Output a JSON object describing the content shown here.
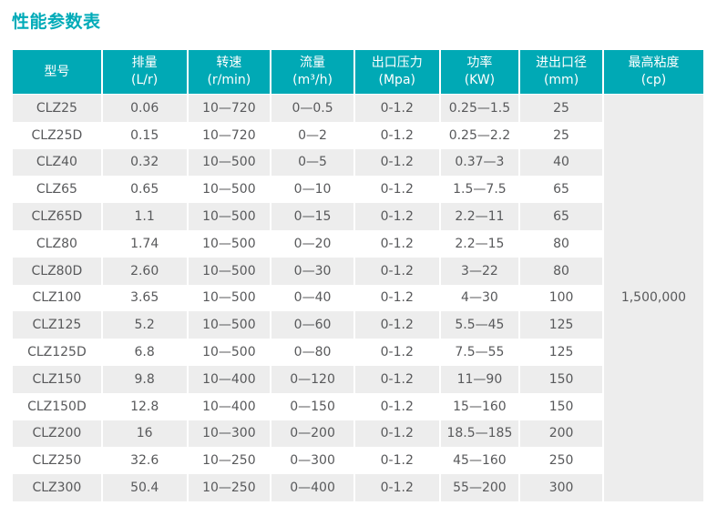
{
  "page": {
    "heading_color": "#00abb8",
    "header_bg_color": "#00a9b5",
    "stripe_color": "#ededed",
    "cell_text_color": "#58595b"
  },
  "chart_data": {
    "type": "table",
    "title": "性能参数表",
    "columns": [
      {
        "label": "型号",
        "unit": ""
      },
      {
        "label": "排量",
        "unit": "(L/r)"
      },
      {
        "label": "转速",
        "unit": "(r/min)"
      },
      {
        "label": "流量",
        "unit": "(m³/h)"
      },
      {
        "label": "出口压力",
        "unit": "(Mpa)"
      },
      {
        "label": "功率",
        "unit": "(KW)"
      },
      {
        "label": "进出口径",
        "unit": "(mm)"
      },
      {
        "label": "最高粘度",
        "unit": "(cp)"
      }
    ],
    "rows": [
      [
        "CLZ25",
        "0.06",
        "10—720",
        "0—0.5",
        "0-1.2",
        "0.25—1.5",
        "25"
      ],
      [
        "CLZ25D",
        "0.15",
        "10—720",
        "0—2",
        "0-1.2",
        "0.25—2.2",
        "25"
      ],
      [
        "CLZ40",
        "0.32",
        "10—500",
        "0—5",
        "0-1.2",
        "0.37—3",
        "40"
      ],
      [
        "CLZ65",
        "0.65",
        "10—500",
        "0—10",
        "0-1.2",
        "1.5—7.5",
        "65"
      ],
      [
        "CLZ65D",
        "1.1",
        "10—500",
        "0—15",
        "0-1.2",
        "2.2—11",
        "65"
      ],
      [
        "CLZ80",
        "1.74",
        "10—500",
        "0—20",
        "0-1.2",
        "2.2—15",
        "80"
      ],
      [
        "CLZ80D",
        "2.60",
        "10—500",
        "0—30",
        "0-1.2",
        "3—22",
        "80"
      ],
      [
        "CLZ100",
        "3.65",
        "10—500",
        "0—40",
        "0-1.2",
        "4—30",
        "100"
      ],
      [
        "CLZ125",
        "5.2",
        "10—500",
        "0—60",
        "0-1.2",
        "5.5—45",
        "125"
      ],
      [
        "CLZ125D",
        "6.8",
        "10—500",
        "0—80",
        "0-1.2",
        "7.5—55",
        "125"
      ],
      [
        "CLZ150",
        "9.8",
        "10—400",
        "0—120",
        "0-1.2",
        "11—90",
        "150"
      ],
      [
        "CLZ150D",
        "12.8",
        "10—400",
        "0—150",
        "0-1.2",
        "15—160",
        "150"
      ],
      [
        "CLZ200",
        "16",
        "10—300",
        "0—200",
        "0-1.2",
        "18.5—185",
        "200"
      ],
      [
        "CLZ250",
        "32.6",
        "10—250",
        "0—300",
        "0-1.2",
        "45—160",
        "250"
      ],
      [
        "CLZ300",
        "50.4",
        "10—250",
        "0—400",
        "0-1.2",
        "55—200",
        "300"
      ]
    ],
    "merged_last_column": {
      "column": "最高粘度 (cp)",
      "value": "1,500,000",
      "spans_all_rows": true
    }
  }
}
